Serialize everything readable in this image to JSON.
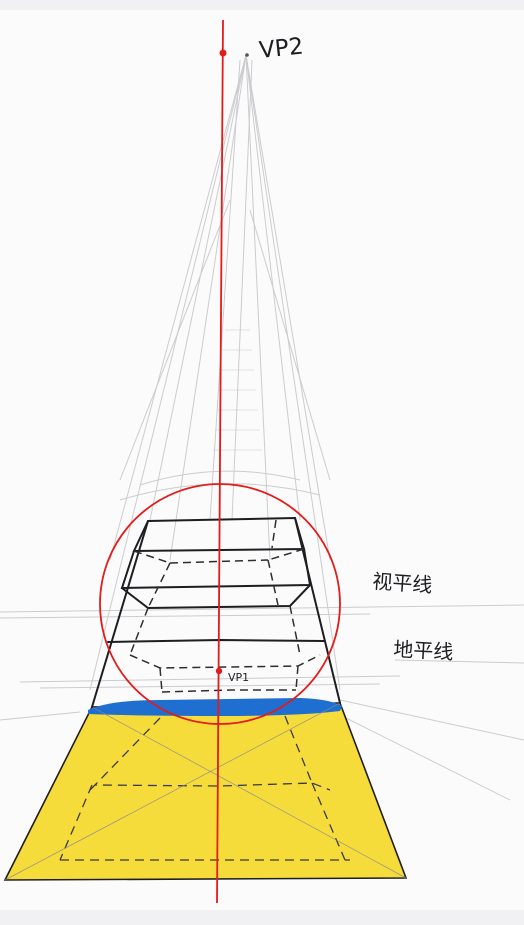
{
  "labels": {
    "vp2": "VP2",
    "vp1": "VP1",
    "horizon_line": "视平线",
    "ground_line": "地平线"
  },
  "colors": {
    "ink": "#1e1e22",
    "pencil": "#b8b8bc",
    "red": "#e21b1b",
    "yellow": "#f6dc3a",
    "blue": "#1f6fd0",
    "paper": "#fbfbfb",
    "border": "#f1f1f3"
  }
}
